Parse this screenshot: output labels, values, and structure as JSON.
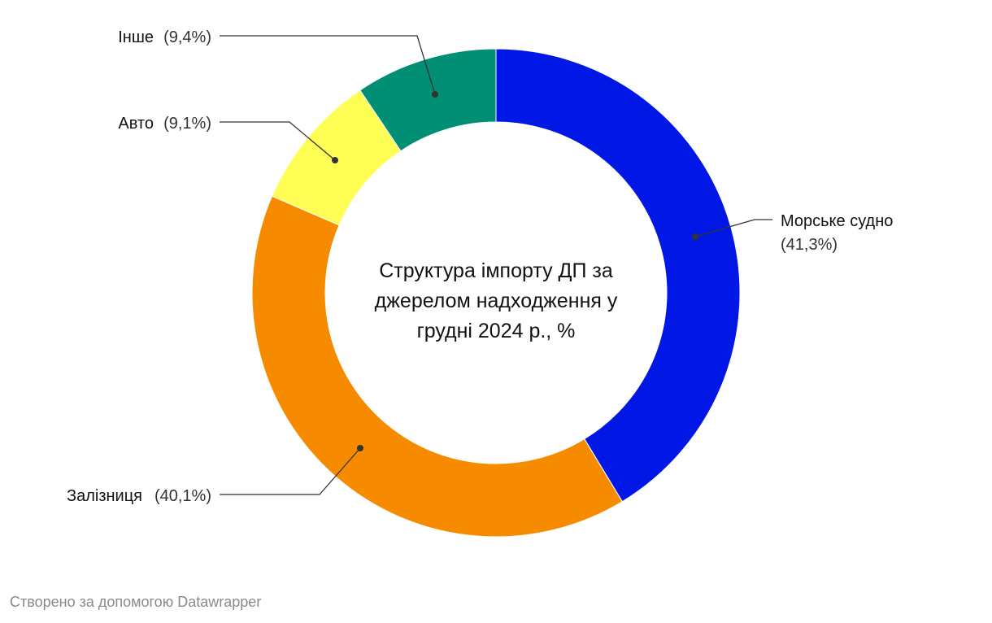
{
  "chart_data": {
    "type": "pie",
    "style": "donut",
    "title": "Структура імпорту ДП за джерелом надходження у грудні 2024 р., %",
    "title_lines": [
      "Структура імпорту ДП за",
      "джерелом надходження у",
      "грудні 2024 р., %"
    ],
    "slices": [
      {
        "name": "Морське судно",
        "value": 41.3,
        "label": "(41,3%)",
        "color": "#0017e6"
      },
      {
        "name": "Залізниця",
        "value": 40.1,
        "label": "(40,1%)",
        "color": "#f78b00"
      },
      {
        "name": "Авто",
        "value": 9.1,
        "label": "(9,1%)",
        "color": "#fefe55"
      },
      {
        "name": "Інше",
        "value": 9.4,
        "label": "(9,4%)",
        "color": "#008e74"
      }
    ]
  },
  "footer": "Створено за допомогою Datawrapper"
}
